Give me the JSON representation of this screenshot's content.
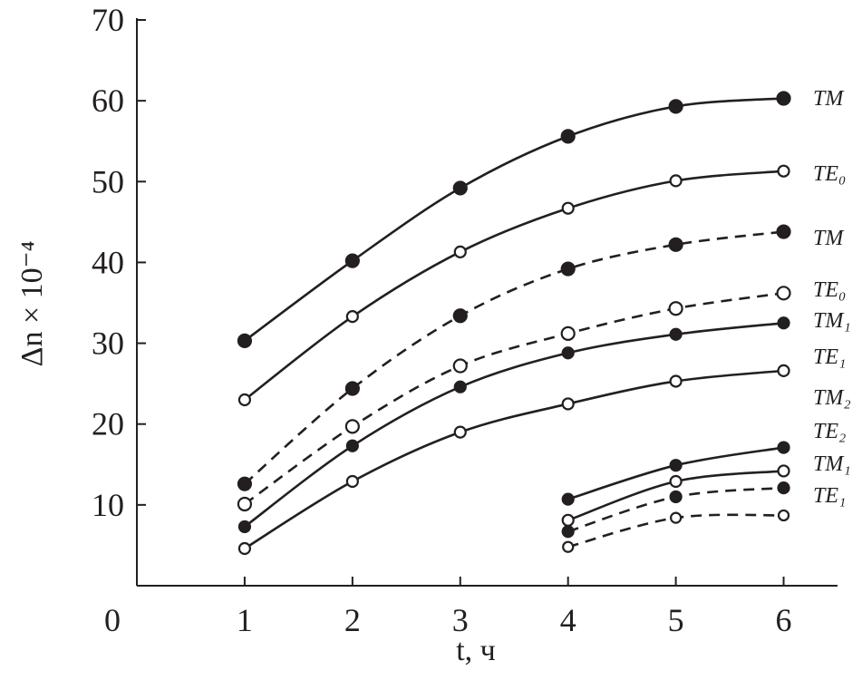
{
  "chart_data": {
    "type": "line",
    "x_label": "t, ч",
    "y_label": "Δn × 10⁻⁴",
    "xlim": [
      0,
      6.5
    ],
    "ylim": [
      0,
      70
    ],
    "xticks": [
      1,
      2,
      3,
      4,
      5,
      6
    ],
    "yticks": [
      0,
      10,
      20,
      30,
      40,
      50,
      60,
      70
    ],
    "color": "#231f20",
    "series": [
      {
        "name": "TM",
        "marker": "filled",
        "dashed": false,
        "x": [
          1,
          2,
          3,
          4,
          5,
          6
        ],
        "values": [
          30.3,
          40.2,
          49.2,
          55.6,
          59.3,
          60.3
        ]
      },
      {
        "name": "TE₀",
        "marker": "open",
        "dashed": false,
        "x": [
          1,
          2,
          3,
          4,
          5,
          6
        ],
        "values": [
          23.0,
          33.3,
          41.3,
          46.7,
          50.1,
          51.3
        ]
      },
      {
        "name": "TM",
        "marker": "filled",
        "dashed": true,
        "x": [
          1,
          2,
          3,
          4,
          5,
          6
        ],
        "values": [
          12.6,
          24.4,
          33.4,
          39.2,
          42.2,
          43.8
        ]
      },
      {
        "name": "TE₀",
        "marker": "open",
        "dashed": true,
        "x": [
          1,
          2,
          3,
          4,
          5,
          6
        ],
        "values": [
          10.1,
          19.7,
          27.2,
          31.2,
          34.3,
          36.2
        ]
      },
      {
        "name": "TM₁",
        "marker": "filled",
        "dashed": false,
        "x": [
          1,
          2,
          3,
          4,
          5,
          6
        ],
        "values": [
          7.3,
          17.3,
          24.6,
          28.8,
          31.1,
          32.5
        ]
      },
      {
        "name": "TE₁",
        "marker": "open",
        "dashed": false,
        "x": [
          1,
          2,
          3,
          4,
          5,
          6
        ],
        "values": [
          4.6,
          12.9,
          19.0,
          22.5,
          25.3,
          26.6
        ]
      },
      {
        "name": "TM₂",
        "marker": "filled",
        "dashed": false,
        "x": [
          4,
          5,
          6
        ],
        "values": [
          10.7,
          14.9,
          17.1
        ]
      },
      {
        "name": "TE₂",
        "marker": "open",
        "dashed": false,
        "x": [
          4,
          5,
          6
        ],
        "values": [
          8.1,
          12.9,
          14.2
        ]
      },
      {
        "name": "TM₁",
        "marker": "filled",
        "dashed": true,
        "x": [
          4,
          5,
          6
        ],
        "values": [
          6.7,
          11.0,
          12.1
        ]
      },
      {
        "name": "TE₁",
        "marker": "open",
        "dashed": true,
        "x": [
          4,
          5,
          6
        ],
        "values": [
          4.8,
          8.4,
          8.7
        ]
      }
    ]
  }
}
